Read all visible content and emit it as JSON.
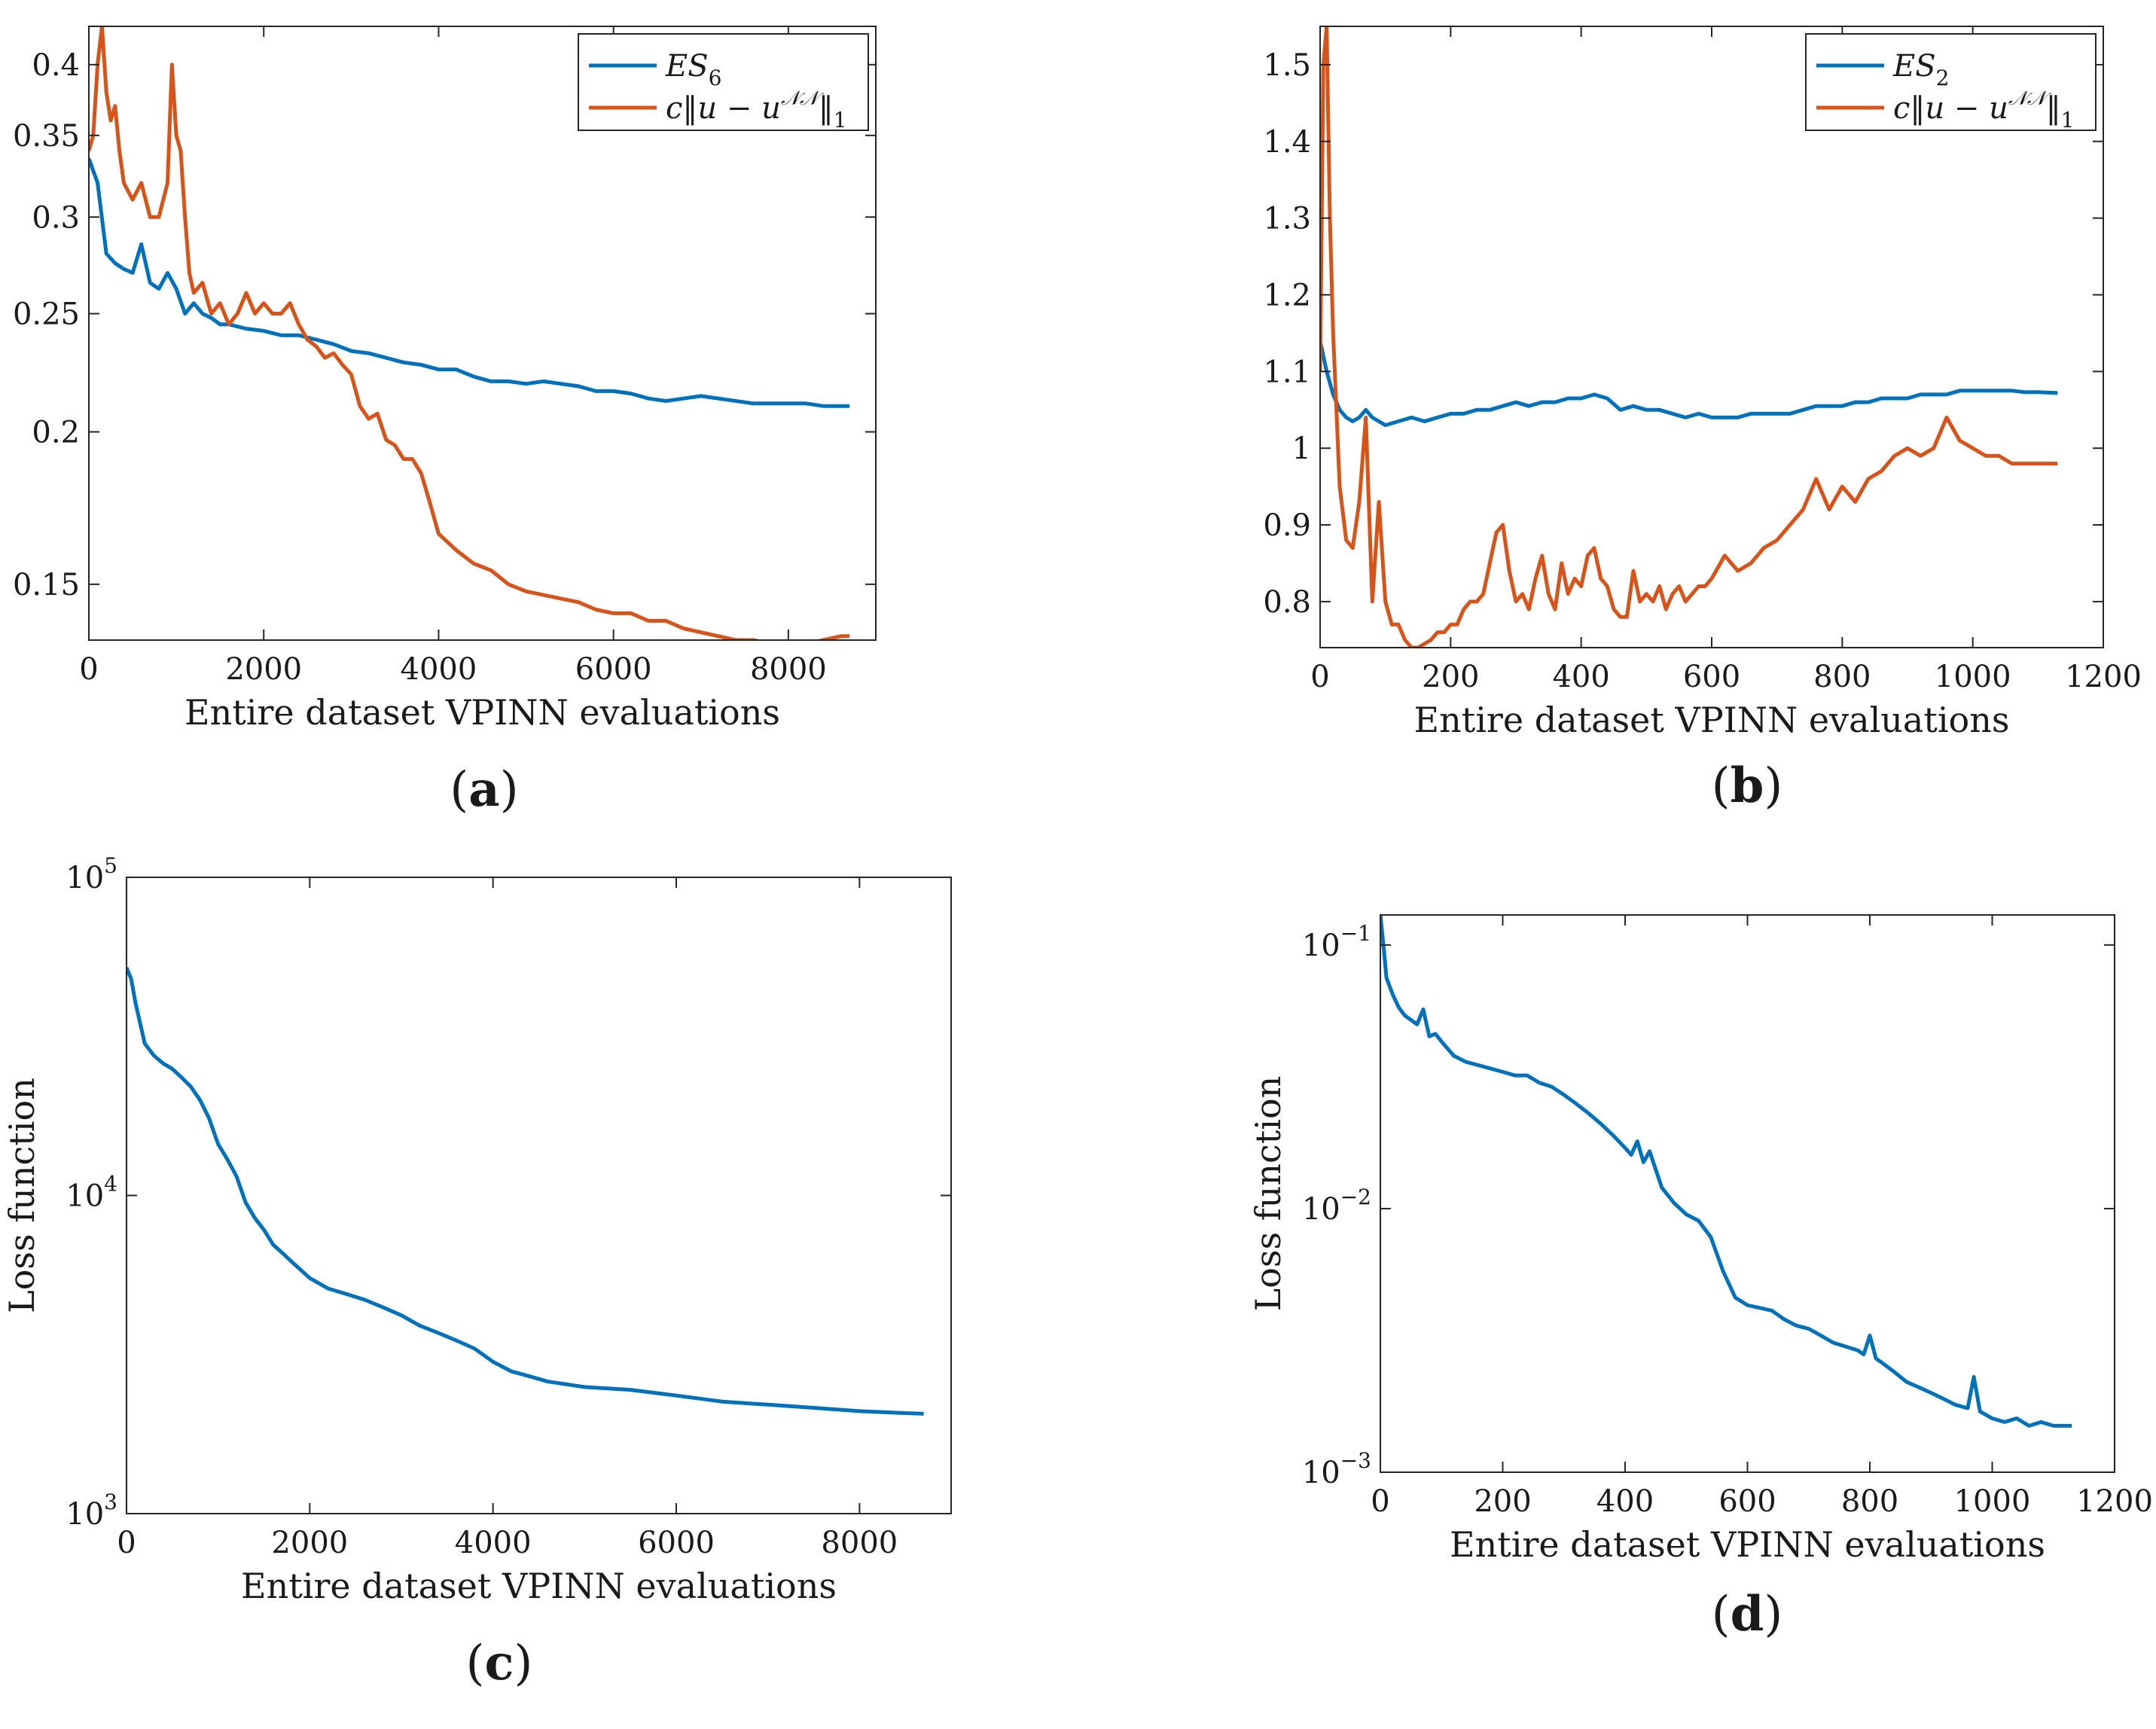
{
  "colors": {
    "blue": "#0072BD",
    "orange": "#D95319",
    "axis": "#262626"
  },
  "chart_data": [
    {
      "id": "a",
      "panel_label": "(a)",
      "type": "line",
      "xlabel": "Entire dataset VPINN evaluations",
      "ylabel": "",
      "xlim": [
        0,
        9000
      ],
      "ylim": [
        0.135,
        0.43
      ],
      "yscale": "log",
      "grid": false,
      "legend_position": "top-right",
      "xticks": [
        0,
        2000,
        4000,
        6000,
        8000
      ],
      "xtick_labels": [
        "0",
        "2000",
        "4000",
        "6000",
        "8000"
      ],
      "yticks": [
        0.15,
        0.2,
        0.25,
        0.3,
        0.35,
        0.4
      ],
      "ytick_labels": [
        "0.15",
        "0.2",
        "0.25",
        "0.3",
        "0.35",
        "0.4"
      ],
      "series": [
        {
          "name": "ES_6",
          "legend_main": "ES",
          "legend_sub": "6",
          "color": "#0072BD",
          "x": [
            0,
            100,
            200,
            300,
            400,
            500,
            600,
            700,
            800,
            900,
            1000,
            1100,
            1200,
            1300,
            1400,
            1500,
            1600,
            1800,
            2000,
            2200,
            2400,
            2600,
            2800,
            3000,
            3200,
            3400,
            3600,
            3800,
            4000,
            4200,
            4400,
            4600,
            4800,
            5000,
            5200,
            5400,
            5600,
            5800,
            6000,
            6200,
            6400,
            6600,
            6800,
            7000,
            7200,
            7400,
            7600,
            7800,
            8000,
            8200,
            8400,
            8600,
            8700
          ],
          "y": [
            0.335,
            0.32,
            0.28,
            0.275,
            0.272,
            0.27,
            0.285,
            0.265,
            0.262,
            0.27,
            0.262,
            0.25,
            0.255,
            0.25,
            0.248,
            0.245,
            0.245,
            0.243,
            0.242,
            0.24,
            0.24,
            0.238,
            0.236,
            0.233,
            0.232,
            0.23,
            0.228,
            0.227,
            0.225,
            0.225,
            0.222,
            0.22,
            0.22,
            0.219,
            0.22,
            0.219,
            0.218,
            0.216,
            0.216,
            0.215,
            0.213,
            0.212,
            0.213,
            0.214,
            0.213,
            0.212,
            0.211,
            0.211,
            0.211,
            0.211,
            0.21,
            0.21,
            0.21
          ]
        },
        {
          "name": "c||u − u^NN||_1",
          "legend_main": "c‖u − u",
          "legend_sup": "𝒩𝒩",
          "legend_tail": "‖",
          "legend_sub": "1",
          "color": "#D95319",
          "x": [
            0,
            50,
            100,
            150,
            200,
            250,
            300,
            350,
            400,
            500,
            600,
            700,
            800,
            900,
            950,
            1000,
            1050,
            1100,
            1150,
            1200,
            1300,
            1400,
            1500,
            1600,
            1700,
            1800,
            1900,
            2000,
            2100,
            2200,
            2300,
            2400,
            2500,
            2600,
            2700,
            2800,
            2900,
            3000,
            3100,
            3200,
            3300,
            3400,
            3500,
            3600,
            3700,
            3800,
            3900,
            4000,
            4200,
            4400,
            4600,
            4800,
            5000,
            5200,
            5400,
            5600,
            5800,
            6000,
            6200,
            6400,
            6600,
            6800,
            7000,
            7200,
            7400,
            7600,
            7800,
            8000,
            8200,
            8400,
            8600,
            8700
          ],
          "y": [
            0.34,
            0.35,
            0.4,
            0.43,
            0.38,
            0.36,
            0.37,
            0.34,
            0.32,
            0.31,
            0.32,
            0.3,
            0.3,
            0.32,
            0.4,
            0.35,
            0.34,
            0.3,
            0.27,
            0.26,
            0.265,
            0.25,
            0.255,
            0.245,
            0.25,
            0.26,
            0.25,
            0.255,
            0.25,
            0.25,
            0.255,
            0.245,
            0.238,
            0.235,
            0.23,
            0.232,
            0.227,
            0.223,
            0.21,
            0.205,
            0.207,
            0.197,
            0.195,
            0.19,
            0.19,
            0.185,
            0.175,
            0.165,
            0.16,
            0.156,
            0.154,
            0.15,
            0.148,
            0.147,
            0.146,
            0.145,
            0.143,
            0.142,
            0.142,
            0.14,
            0.14,
            0.138,
            0.137,
            0.136,
            0.135,
            0.135,
            0.134,
            0.133,
            0.134,
            0.135,
            0.136,
            0.136
          ]
        }
      ]
    },
    {
      "id": "b",
      "panel_label": "(b)",
      "type": "line",
      "xlabel": "Entire dataset VPINN evaluations",
      "ylabel": "",
      "xlim": [
        0,
        1200
      ],
      "ylim": [
        0.74,
        1.55
      ],
      "yscale": "linear",
      "grid": false,
      "legend_position": "top-right",
      "xticks": [
        0,
        200,
        400,
        600,
        800,
        1000,
        1200
      ],
      "xtick_labels": [
        "0",
        "200",
        "400",
        "600",
        "800",
        "1000",
        "1200"
      ],
      "yticks": [
        0.8,
        0.9,
        1.0,
        1.1,
        1.2,
        1.3,
        1.4,
        1.5
      ],
      "ytick_labels": [
        "0.8",
        "0.9",
        "1",
        "1.1",
        "1.2",
        "1.3",
        "1.4",
        "1.5"
      ],
      "series": [
        {
          "name": "ES_2",
          "legend_main": "ES",
          "legend_sub": "2",
          "color": "#0072BD",
          "x": [
            0,
            10,
            20,
            30,
            40,
            50,
            60,
            70,
            80,
            90,
            100,
            120,
            140,
            160,
            180,
            200,
            220,
            240,
            260,
            280,
            300,
            320,
            340,
            360,
            380,
            400,
            420,
            440,
            460,
            480,
            500,
            520,
            540,
            560,
            580,
            600,
            620,
            640,
            660,
            680,
            700,
            720,
            740,
            760,
            780,
            800,
            820,
            840,
            860,
            880,
            900,
            920,
            940,
            960,
            980,
            1000,
            1020,
            1040,
            1060,
            1080,
            1100,
            1130
          ],
          "y": [
            1.14,
            1.1,
            1.07,
            1.05,
            1.04,
            1.035,
            1.04,
            1.05,
            1.04,
            1.035,
            1.03,
            1.035,
            1.04,
            1.035,
            1.04,
            1.045,
            1.045,
            1.05,
            1.05,
            1.055,
            1.06,
            1.055,
            1.06,
            1.06,
            1.065,
            1.065,
            1.07,
            1.065,
            1.05,
            1.055,
            1.05,
            1.05,
            1.045,
            1.04,
            1.045,
            1.04,
            1.04,
            1.04,
            1.045,
            1.045,
            1.045,
            1.045,
            1.05,
            1.055,
            1.055,
            1.055,
            1.06,
            1.06,
            1.065,
            1.065,
            1.065,
            1.07,
            1.07,
            1.07,
            1.075,
            1.075,
            1.075,
            1.075,
            1.075,
            1.073,
            1.073,
            1.072
          ]
        },
        {
          "name": "c||u − u^NN||_1",
          "legend_main": "c‖u − u",
          "legend_sup": "𝒩𝒩",
          "legend_tail": "‖",
          "legend_sub": "1",
          "color": "#D95319",
          "x": [
            0,
            5,
            10,
            15,
            20,
            30,
            40,
            50,
            60,
            70,
            80,
            90,
            100,
            110,
            120,
            130,
            140,
            150,
            160,
            170,
            180,
            190,
            200,
            210,
            220,
            230,
            240,
            250,
            260,
            270,
            280,
            290,
            300,
            310,
            320,
            330,
            340,
            350,
            360,
            370,
            380,
            390,
            400,
            410,
            420,
            430,
            440,
            450,
            460,
            470,
            480,
            490,
            500,
            510,
            520,
            530,
            540,
            550,
            560,
            570,
            580,
            590,
            600,
            620,
            640,
            660,
            680,
            700,
            720,
            740,
            760,
            780,
            800,
            820,
            840,
            860,
            880,
            900,
            920,
            940,
            960,
            980,
            1000,
            1020,
            1040,
            1060,
            1080,
            1100,
            1130
          ],
          "y": [
            1.1,
            1.5,
            1.55,
            1.3,
            1.15,
            0.95,
            0.88,
            0.87,
            0.93,
            1.04,
            0.8,
            0.93,
            0.8,
            0.77,
            0.77,
            0.75,
            0.74,
            0.74,
            0.745,
            0.75,
            0.76,
            0.76,
            0.77,
            0.77,
            0.79,
            0.8,
            0.8,
            0.81,
            0.85,
            0.89,
            0.9,
            0.84,
            0.8,
            0.81,
            0.79,
            0.83,
            0.86,
            0.81,
            0.79,
            0.85,
            0.81,
            0.83,
            0.82,
            0.86,
            0.87,
            0.83,
            0.82,
            0.79,
            0.78,
            0.78,
            0.84,
            0.8,
            0.81,
            0.8,
            0.82,
            0.79,
            0.81,
            0.82,
            0.8,
            0.81,
            0.82,
            0.82,
            0.83,
            0.86,
            0.84,
            0.85,
            0.87,
            0.88,
            0.9,
            0.92,
            0.96,
            0.92,
            0.95,
            0.93,
            0.96,
            0.97,
            0.99,
            1.0,
            0.99,
            1.0,
            1.04,
            1.01,
            1.0,
            0.99,
            0.99,
            0.98,
            0.98,
            0.98,
            0.98
          ]
        }
      ]
    },
    {
      "id": "c",
      "panel_label": "(c)",
      "type": "line",
      "xlabel": "Entire dataset VPINN evaluations",
      "ylabel": "Loss function",
      "xlim": [
        0,
        9000
      ],
      "ylim": [
        1000,
        100000
      ],
      "yscale": "log",
      "grid": false,
      "xticks": [
        0,
        2000,
        4000,
        6000,
        8000
      ],
      "xtick_labels": [
        "0",
        "2000",
        "4000",
        "6000",
        "8000"
      ],
      "yticks": [
        1000,
        10000,
        100000
      ],
      "ytick_labels": [
        {
          "base": "10",
          "exp": "3"
        },
        {
          "base": "10",
          "exp": "4"
        },
        {
          "base": "10",
          "exp": "5"
        }
      ],
      "series": [
        {
          "name": "",
          "color": "#0072BD",
          "x": [
            0,
            50,
            100,
            200,
            300,
            400,
            500,
            600,
            700,
            800,
            900,
            1000,
            1100,
            1200,
            1300,
            1400,
            1500,
            1600,
            1700,
            1800,
            2000,
            2200,
            2400,
            2600,
            2800,
            3000,
            3200,
            3400,
            3600,
            3800,
            4000,
            4200,
            4400,
            4600,
            4800,
            5000,
            5500,
            6000,
            6500,
            7000,
            7500,
            8000,
            8500,
            8700
          ],
          "y": [
            52000,
            48000,
            40000,
            30000,
            27500,
            26000,
            25000,
            23500,
            22000,
            20000,
            17500,
            14500,
            13000,
            11500,
            9500,
            8500,
            7800,
            7000,
            6600,
            6200,
            5500,
            5100,
            4900,
            4700,
            4450,
            4200,
            3900,
            3700,
            3500,
            3300,
            3000,
            2800,
            2700,
            2600,
            2550,
            2500,
            2450,
            2350,
            2250,
            2200,
            2150,
            2100,
            2070,
            2060
          ]
        }
      ]
    },
    {
      "id": "d",
      "panel_label": "(d)",
      "type": "line",
      "xlabel": "Entire dataset VPINN evaluations",
      "ylabel": "Loss function",
      "xlim": [
        0,
        1200
      ],
      "ylim": [
        0.001,
        0.13
      ],
      "yscale": "log",
      "grid": false,
      "xticks": [
        0,
        200,
        400,
        600,
        800,
        1000,
        1200
      ],
      "xtick_labels": [
        "0",
        "200",
        "400",
        "600",
        "800",
        "1000",
        "1200"
      ],
      "yticks": [
        0.001,
        0.01,
        0.1
      ],
      "ytick_labels": [
        {
          "base": "10",
          "exp": "−3"
        },
        {
          "base": "10",
          "exp": "−2"
        },
        {
          "base": "10",
          "exp": "−1"
        }
      ],
      "series": [
        {
          "name": "",
          "color": "#0072BD",
          "x": [
            0,
            5,
            10,
            20,
            30,
            40,
            50,
            60,
            70,
            80,
            90,
            100,
            120,
            140,
            160,
            180,
            200,
            220,
            240,
            260,
            280,
            300,
            320,
            340,
            360,
            380,
            400,
            410,
            420,
            430,
            440,
            460,
            480,
            500,
            520,
            540,
            560,
            580,
            600,
            620,
            640,
            660,
            680,
            700,
            720,
            740,
            760,
            780,
            790,
            800,
            810,
            820,
            840,
            860,
            880,
            900,
            920,
            940,
            960,
            970,
            980,
            990,
            1000,
            1020,
            1040,
            1060,
            1080,
            1100,
            1130
          ],
          "y": [
            0.13,
            0.1,
            0.075,
            0.065,
            0.058,
            0.054,
            0.052,
            0.05,
            0.057,
            0.045,
            0.046,
            0.043,
            0.038,
            0.036,
            0.035,
            0.034,
            0.033,
            0.032,
            0.032,
            0.03,
            0.029,
            0.027,
            0.025,
            0.023,
            0.021,
            0.019,
            0.017,
            0.016,
            0.018,
            0.015,
            0.0165,
            0.012,
            0.0105,
            0.0095,
            0.009,
            0.0078,
            0.0058,
            0.0046,
            0.0043,
            0.0042,
            0.0041,
            0.0038,
            0.0036,
            0.0035,
            0.0033,
            0.0031,
            0.003,
            0.0029,
            0.0028,
            0.0033,
            0.0027,
            0.0026,
            0.0024,
            0.0022,
            0.0021,
            0.002,
            0.0019,
            0.0018,
            0.00175,
            0.0023,
            0.0017,
            0.00165,
            0.0016,
            0.00155,
            0.0016,
            0.0015,
            0.00155,
            0.0015,
            0.0015
          ]
        }
      ]
    }
  ]
}
